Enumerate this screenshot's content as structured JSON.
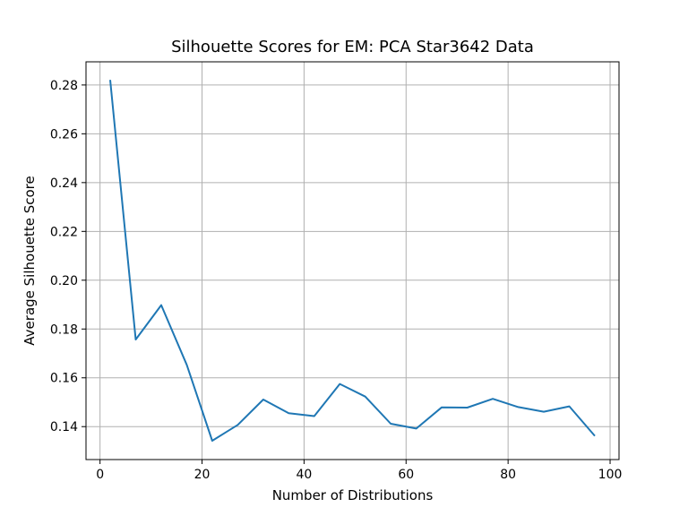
{
  "chart_data": {
    "type": "line",
    "title": "Silhouette Scores for EM: PCA Star3642 Data",
    "xlabel": "Number of Distributions",
    "ylabel": "Average Silhouette Score",
    "xlim": [
      -2.75,
      101.75
    ],
    "ylim": [
      0.1265,
      0.2895
    ],
    "xticks": [
      0,
      20,
      40,
      60,
      80,
      100
    ],
    "yticks": [
      0.14,
      0.16,
      0.18,
      0.2,
      0.22,
      0.24,
      0.26,
      0.28
    ],
    "xtick_labels": [
      "0",
      "20",
      "40",
      "60",
      "80",
      "100"
    ],
    "ytick_labels": [
      "0.14",
      "0.16",
      "0.18",
      "0.20",
      "0.22",
      "0.24",
      "0.26",
      "0.28"
    ],
    "grid": true,
    "line_color": "#1f77b4",
    "series": [
      {
        "x": [
          2,
          7,
          12,
          17,
          22,
          27,
          32,
          37,
          42,
          47,
          52,
          57,
          62,
          67,
          72,
          77,
          82,
          87,
          92,
          97
        ],
        "y": [
          0.2821,
          0.1757,
          0.1898,
          0.1653,
          0.1342,
          0.1407,
          0.1511,
          0.1455,
          0.1443,
          0.1575,
          0.1523,
          0.1412,
          0.1392,
          0.1479,
          0.1478,
          0.1514,
          0.148,
          0.1461,
          0.1483,
          0.1362
        ]
      }
    ]
  }
}
